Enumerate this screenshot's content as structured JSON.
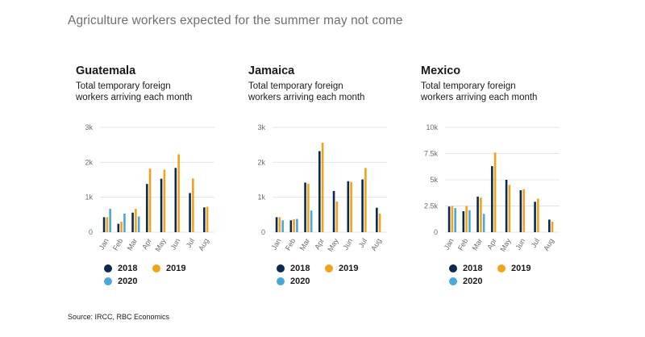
{
  "title": "Agriculture workers expected for the summer may not come",
  "source": "Source: IRCC, RBC Economics",
  "colors": {
    "2018": "#0b2a4f",
    "2019": "#f2a31d",
    "2020": "#4aa8d8",
    "grid": "#e4e4e4",
    "axis": "#6b6b6b"
  },
  "chart_data": [
    {
      "type": "bar",
      "title": "Guatemala",
      "subtitle": "Total temporary foreign workers arriving each month",
      "categories": [
        "Jan",
        "Feb",
        "Mar",
        "Apr",
        "May",
        "Jun",
        "Jul",
        "Aug"
      ],
      "series": [
        {
          "name": "2018",
          "values": [
            430,
            240,
            560,
            1380,
            1530,
            1840,
            1120,
            710
          ]
        },
        {
          "name": "2019",
          "values": [
            430,
            300,
            670,
            1820,
            1790,
            2230,
            1540,
            730
          ]
        },
        {
          "name": "2020",
          "values": [
            670,
            530,
            450,
            null,
            null,
            null,
            null,
            null
          ]
        }
      ],
      "yticks": [
        0,
        1000,
        2000,
        3000
      ],
      "ytick_labels": [
        "0",
        "1k",
        "2k",
        "3k"
      ],
      "ylim": [
        0,
        3000
      ],
      "legend": "bottom"
    },
    {
      "type": "bar",
      "title": "Jamaica",
      "subtitle": "Total temporary foreign workers arriving each month",
      "categories": [
        "Jan",
        "Feb",
        "Mar",
        "Apr",
        "May",
        "Jun",
        "Jul",
        "Aug"
      ],
      "series": [
        {
          "name": "2018",
          "values": [
            430,
            340,
            1420,
            2320,
            1180,
            1460,
            1510,
            700
          ]
        },
        {
          "name": "2019",
          "values": [
            430,
            370,
            1390,
            2560,
            880,
            1440,
            1840,
            530
          ]
        },
        {
          "name": "2020",
          "values": [
            340,
            380,
            620,
            null,
            null,
            null,
            null,
            null
          ]
        }
      ],
      "yticks": [
        0,
        1000,
        2000,
        3000
      ],
      "ytick_labels": [
        "0",
        "1k",
        "2k",
        "3k"
      ],
      "ylim": [
        0,
        3000
      ],
      "legend": "bottom"
    },
    {
      "type": "bar",
      "title": "Mexico",
      "subtitle": "Total temporary foreign workers arriving each month",
      "categories": [
        "Jan",
        "Feb",
        "Mar",
        "Apr",
        "May",
        "Jun",
        "Jul",
        "Aug"
      ],
      "series": [
        {
          "name": "2018",
          "values": [
            2450,
            2000,
            3400,
            6300,
            5000,
            4000,
            2900,
            1200
          ]
        },
        {
          "name": "2019",
          "values": [
            2500,
            2500,
            3300,
            7600,
            4500,
            4100,
            3200,
            1000
          ]
        },
        {
          "name": "2020",
          "values": [
            2300,
            2100,
            1750,
            null,
            null,
            null,
            null,
            null
          ]
        }
      ],
      "yticks": [
        0,
        2500,
        5000,
        7500,
        10000
      ],
      "ytick_labels": [
        "0",
        "2.5k",
        "5k",
        "7.5k",
        "10k"
      ],
      "ylim": [
        0,
        10000
      ],
      "legend": "bottom"
    }
  ]
}
